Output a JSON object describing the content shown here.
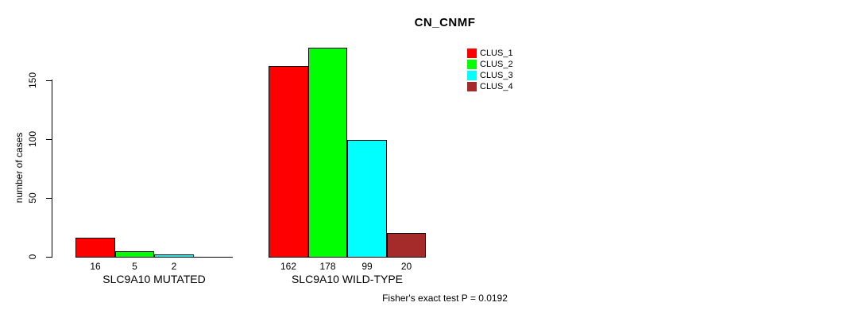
{
  "title": "CN_CNMF",
  "footer": "Fisher's exact test P = 0.0192",
  "chart_data": {
    "type": "bar",
    "title": "CN_CNMF",
    "xlabel": "",
    "ylabel": "number of cases",
    "ylim": [
      0,
      178
    ],
    "yticks": [
      0,
      50,
      100,
      150
    ],
    "grid": false,
    "legend_position": "top-right",
    "categories": [
      "SLC9A10 MUTATED",
      "SLC9A10 WILD-TYPE"
    ],
    "series": [
      {
        "name": "CLUS_1",
        "color": "#ff0000",
        "values": [
          16,
          162
        ]
      },
      {
        "name": "CLUS_2",
        "color": "#00ff00",
        "values": [
          5,
          178
        ]
      },
      {
        "name": "CLUS_3",
        "color": "#00ffff",
        "values": [
          2,
          99
        ]
      },
      {
        "name": "CLUS_4",
        "color": "#a52a2a",
        "values": [
          0,
          20
        ]
      }
    ],
    "bar_labels_shown_only_when_nonzero": true,
    "annotation": "Fisher's exact test P = 0.0192"
  },
  "colors": {
    "background": "#ffffff",
    "axis": "#000000",
    "bar_border": "#000000",
    "text": "#000000"
  }
}
